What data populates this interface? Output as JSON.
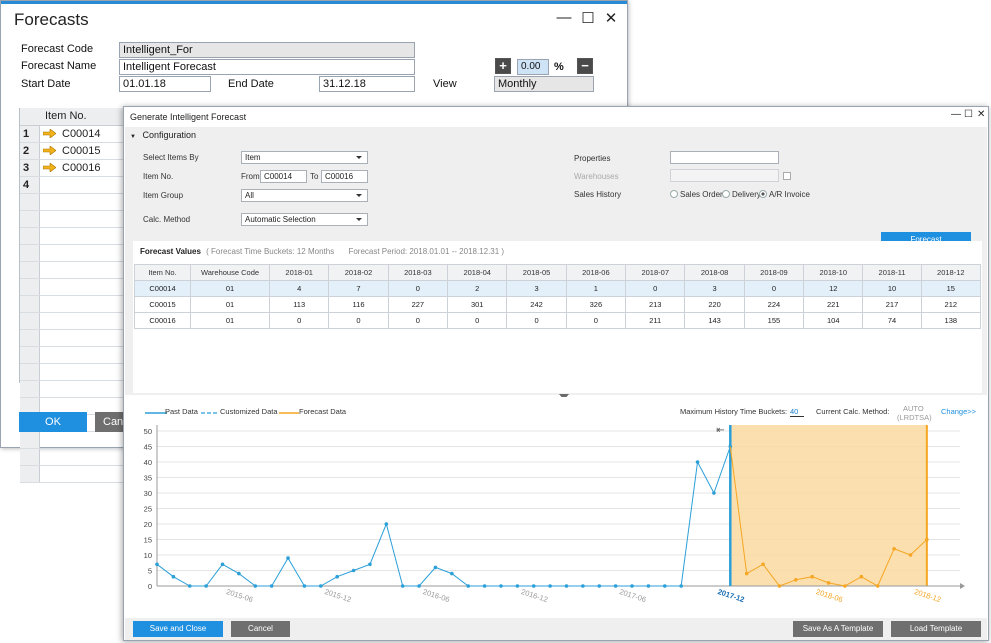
{
  "forecasts_window": {
    "title": "Forecasts",
    "code_label": "Forecast Code",
    "code_value": "Intelligent_For",
    "name_label": "Forecast Name",
    "name_value": "Intelligent Forecast",
    "start_label": "Start Date",
    "start_value": "01.01.18",
    "end_label": "End Date",
    "end_value": "31.12.18",
    "view_label": "View",
    "view_value": "Monthly",
    "percent_value": "0.00",
    "percent_sign": "%",
    "plus_glyph": "+",
    "minus_glyph": "−",
    "grid_header": "Item No.",
    "grid_rows": [
      {
        "num": "1",
        "item": "C00014"
      },
      {
        "num": "2",
        "item": "C00015"
      },
      {
        "num": "3",
        "item": "C00016"
      },
      {
        "num": "4",
        "item": ""
      }
    ],
    "ok_label": "OK",
    "cancel_label": "Cancel",
    "minimize_glyph": "—",
    "maximize_glyph": "☐",
    "close_glyph": "✕"
  },
  "dialog": {
    "title": "Generate Intelligent Forecast",
    "minimize_glyph": "—",
    "maximize_glyph": "☐",
    "close_glyph": "✕",
    "section_title": "Configuration",
    "select_items_by_label": "Select Items By",
    "select_items_by_value": "Item",
    "item_no_label": "Item No.",
    "from_label": "From",
    "from_value": "C00014",
    "to_label": "To",
    "to_value": "C00016",
    "item_group_label": "Item Group",
    "item_group_value": "All",
    "calc_method_label": "Calc. Method",
    "calc_method_value": "Automatic Selection",
    "properties_label": "Properties",
    "warehouses_label": "Warehouses",
    "sales_history_label": "Sales History",
    "sales_history_options": [
      "Sales Order",
      "Delivery",
      "A/R Invoice"
    ],
    "sales_history_selected": "A/R Invoice",
    "forecast_button": "Forecast",
    "values_title": "Forecast Values",
    "time_buckets_text": "( Forecast Time Buckets: 12 Months",
    "period_text": "Forecast Period: 2018.01.01 -- 2018.12.31 )",
    "table_headers": [
      "Item No.",
      "Warehouse Code",
      "2018-01",
      "2018-02",
      "2018-03",
      "2018-04",
      "2018-05",
      "2018-06",
      "2018-07",
      "2018-08",
      "2018-09",
      "2018-10",
      "2018-11",
      "2018-12"
    ],
    "table_rows": [
      [
        "C00014",
        "01",
        "4",
        "7",
        "0",
        "2",
        "3",
        "1",
        "0",
        "3",
        "0",
        "12",
        "10",
        "15"
      ],
      [
        "C00015",
        "01",
        "113",
        "116",
        "227",
        "301",
        "242",
        "326",
        "213",
        "220",
        "224",
        "221",
        "217",
        "212"
      ],
      [
        "C00016",
        "01",
        "0",
        "0",
        "0",
        "0",
        "0",
        "0",
        "211",
        "143",
        "155",
        "104",
        "74",
        "138"
      ]
    ],
    "legend": {
      "past": "Past Data",
      "customized": "Customized Data",
      "forecast": "Forecast Data"
    },
    "max_history_label": "Maximum History Time Buckets:",
    "max_history_value": "40",
    "current_method_label": "Current Calc. Method:",
    "current_method_value": "AUTO",
    "current_method_sub": "(LRDTSA)",
    "change_link": "Change>>",
    "buttons": {
      "save_close": "Save and Close",
      "cancel": "Cancel",
      "save_template": "Save As A Template",
      "load_template": "Load Template"
    }
  },
  "colors": {
    "accent": "#1f8fe0",
    "past_series": "#2b9fd8",
    "forecast_series": "#f5a623",
    "forecast_fill": "#fbd9a0"
  },
  "chart_data": {
    "type": "line",
    "yticks": [
      0,
      5,
      10,
      15,
      20,
      25,
      30,
      35,
      40,
      45,
      50
    ],
    "ylim": [
      0,
      50
    ],
    "xticks": [
      "2015-06",
      "2015-12",
      "2016-06",
      "2016-12",
      "2017-06",
      "2017-12",
      "2018-06",
      "2018-12"
    ],
    "highlight_ticks": [
      "2017-12",
      "2018-06",
      "2018-12"
    ],
    "grid": true,
    "series": [
      {
        "name": "Past Data",
        "x_start": "2015-01",
        "values": [
          7,
          3,
          0,
          0,
          7,
          4,
          0,
          0,
          9,
          0,
          0,
          3,
          5,
          7,
          20,
          0,
          0,
          6,
          4,
          0,
          0,
          0,
          0,
          0,
          0,
          0,
          0,
          0,
          0,
          0,
          0,
          0,
          0,
          40,
          30,
          45
        ]
      },
      {
        "name": "Forecast Data",
        "x_start": "2017-12",
        "values": [
          45,
          4,
          7,
          0,
          2,
          3,
          1,
          0,
          3,
          0,
          12,
          10,
          15
        ]
      }
    ]
  }
}
